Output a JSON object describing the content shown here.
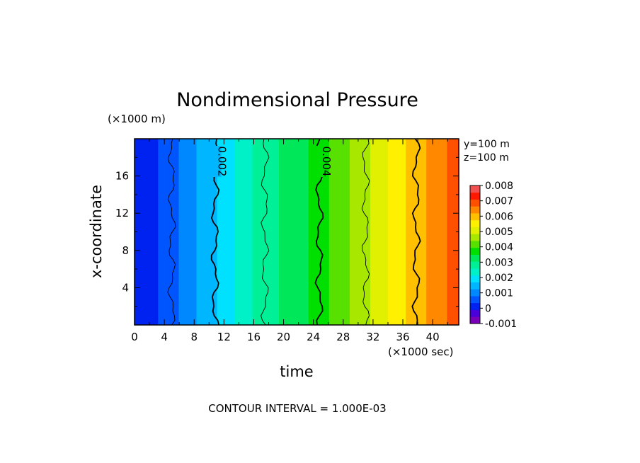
{
  "chart_data": {
    "type": "heatmap",
    "title": "Nondimensional Pressure",
    "xlabel": "time",
    "ylabel": "x-coordinate",
    "x_unit": "(×1000 sec)",
    "y_unit": "(×1000 m)",
    "xlim": [
      0,
      43.5
    ],
    "ylim": [
      0,
      20
    ],
    "x_ticks": [
      "0",
      "4",
      "8",
      "12",
      "16",
      "20",
      "24",
      "28",
      "32",
      "36",
      "40"
    ],
    "y_ticks": [
      "4",
      "8",
      "12",
      "16"
    ],
    "annotations": [
      "y=100 m",
      "z=100 m"
    ],
    "contour_labels": [
      "0.002",
      "0.004"
    ],
    "footer": "CONTOUR INTERVAL = 1.000E-03",
    "colorbar": {
      "ticks": [
        "0.008",
        "0.007",
        "0.006",
        "0.005",
        "0.004",
        "0.003",
        "0.002",
        "0.001",
        "0",
        "-0.001"
      ],
      "levels": [
        -0.001,
        -0.0005,
        0,
        0.0005,
        0.001,
        0.0015,
        0.002,
        0.0025,
        0.003,
        0.0035,
        0.004,
        0.0045,
        0.005,
        0.0055,
        0.006,
        0.0065,
        0.007,
        0.0075,
        0.008,
        0.0085
      ],
      "colors": [
        "#7a00b8",
        "#4a00d8",
        "#0022f0",
        "#0055ff",
        "#0088ff",
        "#00b6ff",
        "#00e0ff",
        "#00f0c8",
        "#00f098",
        "#00e85a",
        "#00e000",
        "#58e000",
        "#a8e800",
        "#e0f000",
        "#fff000",
        "#ffc000",
        "#ff8800",
        "#ff5000",
        "#ff1800",
        "#f05050"
      ]
    },
    "field": {
      "description_time": [
        0,
        4,
        8,
        12,
        16,
        20,
        24,
        28,
        32,
        36,
        40,
        43.5
      ],
      "pressure": [
        0.0,
        0.0006,
        0.0014,
        0.0022,
        0.003,
        0.0036,
        0.0041,
        0.0048,
        0.0056,
        0.0064,
        0.0072,
        0.0078
      ]
    },
    "contours": [
      {
        "value": 0.001,
        "t": 5.0,
        "style": "thin"
      },
      {
        "value": 0.002,
        "t": 10.8,
        "style": "thick",
        "label": "0.002"
      },
      {
        "value": 0.003,
        "t": 17.5,
        "style": "thin"
      },
      {
        "value": 0.004,
        "t": 24.8,
        "style": "thick",
        "label": "0.004"
      },
      {
        "value": 0.005,
        "t": 31.0,
        "style": "thin"
      },
      {
        "value": 0.006,
        "t": 37.8,
        "style": "thick"
      }
    ]
  }
}
